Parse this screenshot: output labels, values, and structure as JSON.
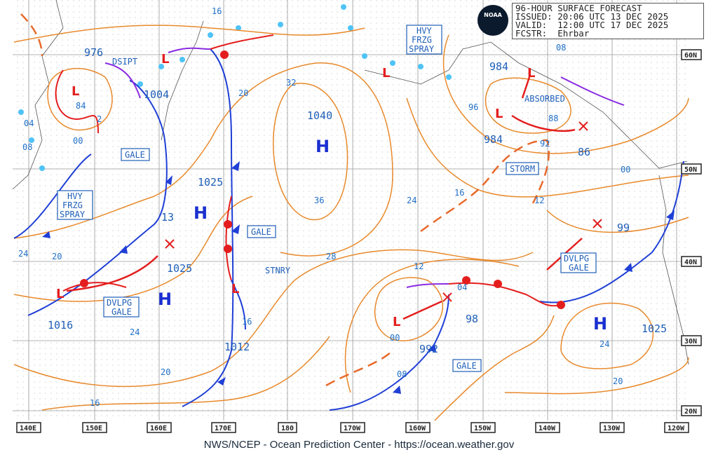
{
  "header": {
    "title": "96-HOUR SURFACE FORECAST",
    "issued": "ISSUED: 20:06 UTC 13 DEC 2025",
    "valid": "VALID:  12:00 UTC 17 DEC 2025",
    "forecaster": "FCSTR:  Ehrbar",
    "logo_text": "NOAA"
  },
  "footer": "NWS/NCEP - Ocean Prediction Center - https://ocean.weather.gov",
  "longitude_labels": [
    "140E",
    "150E",
    "160E",
    "170E",
    "180",
    "170W",
    "160W",
    "150W",
    "140W",
    "130W",
    "120W"
  ],
  "latitude_labels": [
    "60N",
    "50N",
    "40N",
    "30N",
    "20N"
  ],
  "pressure_labels": [
    "976",
    "1004",
    "1040",
    "1025",
    "13",
    "1025",
    "1016",
    "1012",
    "984",
    "984",
    "86",
    "99",
    "98",
    "992",
    "1025"
  ],
  "isobar_labels": [
    "16",
    "32",
    "20",
    "36",
    "28",
    "24",
    "12",
    "16",
    "24",
    "08",
    "00",
    "04",
    "88",
    "92",
    "96",
    "00",
    "24",
    "20",
    "20",
    "16",
    "12",
    "08",
    "84",
    "04",
    "08",
    "24",
    "20",
    "16",
    "2",
    "00"
  ],
  "highs": [
    "H",
    "H",
    "H",
    "H",
    "H"
  ],
  "low_symbol": "L",
  "annotations": {
    "dsipt": "DSIPT",
    "absorbed": "ABSORBED",
    "stnry": "STNRY",
    "gale1": "GALE",
    "gale2": "GALE",
    "gale3": "GALE",
    "storm": "STORM",
    "hfs1": [
      "HVY",
      "FRZG",
      "SPRAY"
    ],
    "hfs2": [
      "HVY",
      "FRZG",
      "SPRAY"
    ],
    "dvlpg1": [
      "DVLPG",
      "GALE"
    ],
    "dvlpg2": [
      "DVLPG",
      "GALE"
    ]
  },
  "colors": {
    "isobar": "#e8892b",
    "cold_front": "#1f3fd6",
    "warm_front": "#e41e1e",
    "occluded": "#8a2be2",
    "label": "#1f5fb8",
    "ice": "#4fc3f7"
  }
}
